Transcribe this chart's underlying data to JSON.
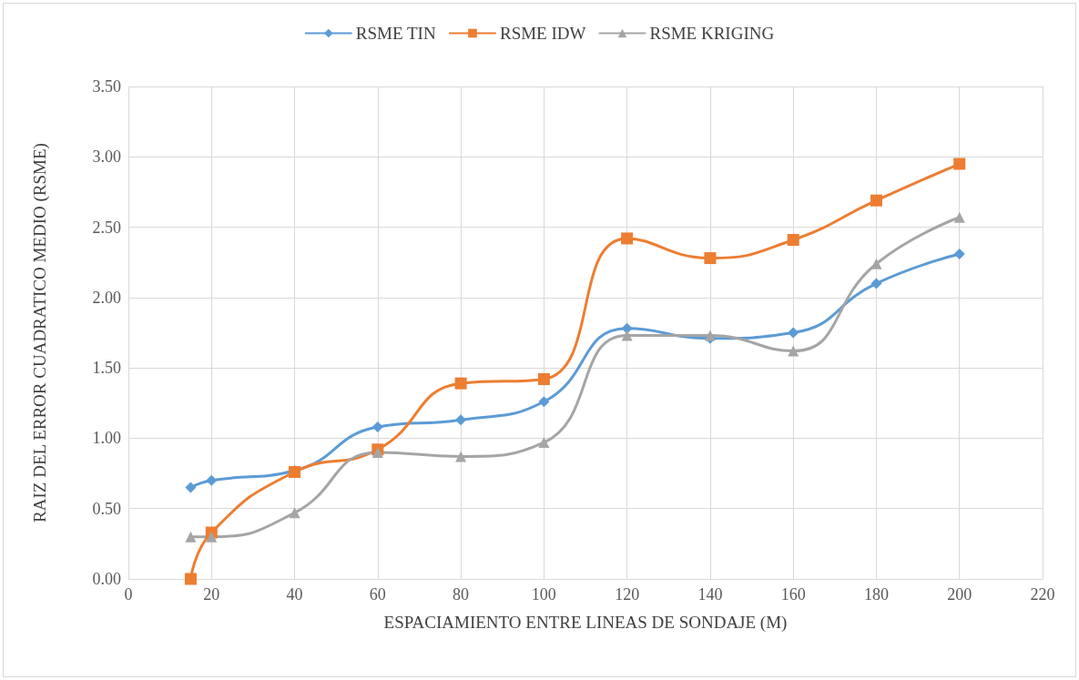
{
  "chart_data": {
    "type": "line",
    "xlabel": "ESPACIAMIENTO ENTRE LINEAS DE SONDAJE (M)",
    "ylabel": "RAIZ DEL ERROR CUADRATICO MEDIO (RSME)",
    "x": [
      15,
      20,
      40,
      60,
      80,
      100,
      120,
      140,
      160,
      180,
      200
    ],
    "xlim": [
      0,
      220
    ],
    "xticks": [
      0,
      20,
      40,
      60,
      80,
      100,
      120,
      140,
      160,
      180,
      200,
      220
    ],
    "ylim": [
      0,
      3.5
    ],
    "yticks": [
      {
        "value": 0,
        "label": "0.00"
      },
      {
        "value": 0.5,
        "label": "0.50"
      },
      {
        "value": 1,
        "label": "1.00"
      },
      {
        "value": 1.5,
        "label": "1.50"
      },
      {
        "value": 2,
        "label": "2.00"
      },
      {
        "value": 2.5,
        "label": "2.50"
      },
      {
        "value": 3,
        "label": "3.00"
      },
      {
        "value": 3.5,
        "label": "3.50"
      }
    ],
    "grid": true,
    "legend": "top",
    "line_style": "solid",
    "series": [
      {
        "name": "RSME TIN",
        "color": "#5b9bd5",
        "marker": "diamond",
        "values": [
          0.65,
          0.7,
          0.77,
          1.08,
          1.13,
          1.26,
          1.78,
          1.71,
          1.75,
          2.1,
          2.31
        ]
      },
      {
        "name": "RSME IDW",
        "color": "#ed7d31",
        "marker": "square",
        "values": [
          0,
          0.33,
          0.76,
          0.92,
          1.39,
          1.42,
          2.42,
          2.28,
          2.41,
          2.69,
          2.95
        ]
      },
      {
        "name": "RSME KRIGING",
        "color": "#a5a5a5",
        "marker": "triangle",
        "values": [
          0.3,
          0.3,
          0.47,
          0.9,
          0.87,
          0.97,
          1.73,
          1.73,
          1.62,
          2.24,
          2.57
        ]
      }
    ]
  }
}
